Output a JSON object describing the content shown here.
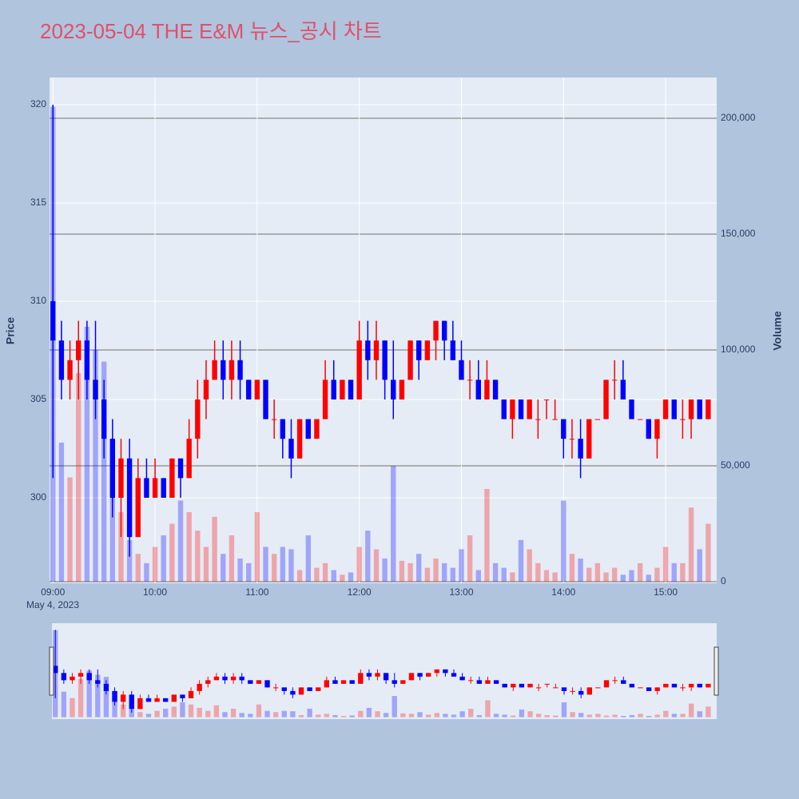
{
  "chart_data": {
    "type": "candlestick",
    "title": "2023-05-04 THE E&M 뉴스_공시 차트",
    "y_label": "Price",
    "y2_label": "Volume",
    "x_date_label": "May 4, 2023",
    "x": [
      "09:00",
      "09:05",
      "09:10",
      "09:15",
      "09:20",
      "09:25",
      "09:30",
      "09:35",
      "09:40",
      "09:45",
      "09:50",
      "09:55",
      "10:00",
      "10:05",
      "10:10",
      "10:15",
      "10:20",
      "10:25",
      "10:30",
      "10:35",
      "10:40",
      "10:45",
      "10:50",
      "10:55",
      "11:00",
      "11:05",
      "11:10",
      "11:15",
      "11:20",
      "11:25",
      "11:30",
      "11:35",
      "11:40",
      "11:45",
      "11:50",
      "11:55",
      "12:00",
      "12:05",
      "12:10",
      "12:15",
      "12:20",
      "12:25",
      "12:30",
      "12:35",
      "12:40",
      "12:45",
      "12:50",
      "12:55",
      "13:00",
      "13:05",
      "13:10",
      "13:15",
      "13:20",
      "13:25",
      "13:30",
      "13:35",
      "13:40",
      "13:45",
      "13:50",
      "13:55",
      "14:00",
      "14:05",
      "14:10",
      "14:15",
      "14:20",
      "14:25",
      "14:30",
      "14:35",
      "14:40",
      "14:45",
      "14:50",
      "14:55",
      "15:00",
      "15:05",
      "15:10",
      "15:15",
      "15:20",
      "15:25"
    ],
    "open": [
      310,
      308,
      306,
      307,
      308,
      306,
      305,
      303,
      300,
      302,
      298,
      301,
      300,
      301,
      300,
      302,
      301,
      303,
      305,
      306,
      307,
      306,
      307,
      306,
      305,
      306,
      304,
      304,
      303,
      302,
      304,
      303,
      304,
      306,
      305,
      306,
      305,
      308,
      307,
      308,
      306,
      305,
      306,
      308,
      307,
      308,
      309,
      308,
      307,
      306,
      306,
      305,
      306,
      305,
      304,
      305,
      304,
      304,
      305,
      304,
      304,
      303,
      303,
      302,
      304,
      304,
      306,
      306,
      305,
      304,
      304,
      303,
      304,
      305,
      304,
      304,
      305,
      304
    ],
    "high": [
      320,
      309,
      308,
      309,
      309,
      309,
      306,
      304,
      303,
      303,
      302,
      302,
      302,
      301,
      302,
      302,
      304,
      306,
      307,
      308,
      308,
      308,
      308,
      306,
      306,
      306,
      305,
      304,
      304,
      304,
      304,
      304,
      307,
      307,
      306,
      306,
      309,
      309,
      309,
      308,
      308,
      306,
      308,
      308,
      308,
      309,
      309,
      309,
      308,
      307,
      307,
      307,
      306,
      305,
      305,
      305,
      305,
      305,
      305,
      305,
      304,
      304,
      304,
      304,
      304,
      306,
      307,
      307,
      305,
      304,
      304,
      304,
      305,
      305,
      305,
      305,
      305,
      305
    ],
    "low": [
      301,
      305,
      305,
      305,
      305,
      304,
      302,
      299,
      298,
      297,
      298,
      300,
      300,
      300,
      300,
      300,
      301,
      302,
      304,
      306,
      305,
      305,
      305,
      305,
      305,
      304,
      303,
      302,
      301,
      302,
      303,
      303,
      304,
      305,
      305,
      305,
      305,
      306,
      306,
      305,
      304,
      305,
      306,
      306,
      307,
      307,
      307,
      307,
      306,
      305,
      305,
      305,
      305,
      304,
      303,
      304,
      304,
      303,
      304,
      304,
      302,
      302,
      301,
      302,
      304,
      304,
      305,
      305,
      304,
      304,
      303,
      302,
      304,
      304,
      303,
      303,
      304,
      304
    ],
    "close": [
      308,
      306,
      307,
      308,
      306,
      305,
      303,
      300,
      302,
      298,
      301,
      300,
      301,
      300,
      302,
      301,
      303,
      305,
      306,
      307,
      306,
      307,
      306,
      305,
      306,
      304,
      304,
      303,
      302,
      304,
      303,
      304,
      306,
      305,
      306,
      305,
      308,
      307,
      308,
      306,
      305,
      306,
      308,
      307,
      308,
      309,
      308,
      307,
      306,
      306,
      305,
      306,
      305,
      304,
      305,
      304,
      305,
      304,
      305,
      304,
      303,
      303,
      302,
      304,
      304,
      306,
      306,
      305,
      304,
      304,
      303,
      304,
      305,
      304,
      304,
      305,
      304,
      305
    ],
    "volume": [
      205000,
      60000,
      45000,
      90000,
      110000,
      100000,
      95000,
      60000,
      30000,
      18000,
      12000,
      8000,
      15000,
      20000,
      25000,
      35000,
      30000,
      22000,
      15000,
      28000,
      12000,
      20000,
      10000,
      8000,
      30000,
      15000,
      12000,
      15000,
      14000,
      5000,
      20000,
      6000,
      8000,
      5000,
      3000,
      4000,
      15000,
      22000,
      14000,
      10000,
      50000,
      9000,
      8000,
      12000,
      6000,
      10000,
      8000,
      6000,
      14000,
      20000,
      5000,
      40000,
      8000,
      6000,
      4000,
      18000,
      14000,
      8000,
      5000,
      4000,
      35000,
      12000,
      10000,
      6000,
      8000,
      4000,
      6000,
      3000,
      5000,
      8000,
      3000,
      6000,
      15000,
      8000,
      8000,
      32000,
      14000,
      25000
    ],
    "increasing_color": "#ff0000",
    "decreasing_color": "#0000ff",
    "ylim": [
      295.65,
      321.38
    ],
    "yticks": [
      300,
      305,
      310,
      315,
      320
    ],
    "y2lim": [
      -690,
      217600
    ],
    "y2ticks": [
      0,
      {
        "value": 50000,
        "label": "50,000"
      },
      {
        "value": 100000,
        "label": "100,000"
      },
      {
        "value": 150000,
        "label": "150,000"
      },
      {
        "value": 200000,
        "label": "200,000"
      }
    ],
    "xlim": [
      "08:58",
      "15:30"
    ],
    "xticks": [
      "09:00",
      "10:00",
      "11:00",
      "12:00",
      "13:00",
      "14:00",
      "15:00"
    ],
    "rangeslider": true
  }
}
